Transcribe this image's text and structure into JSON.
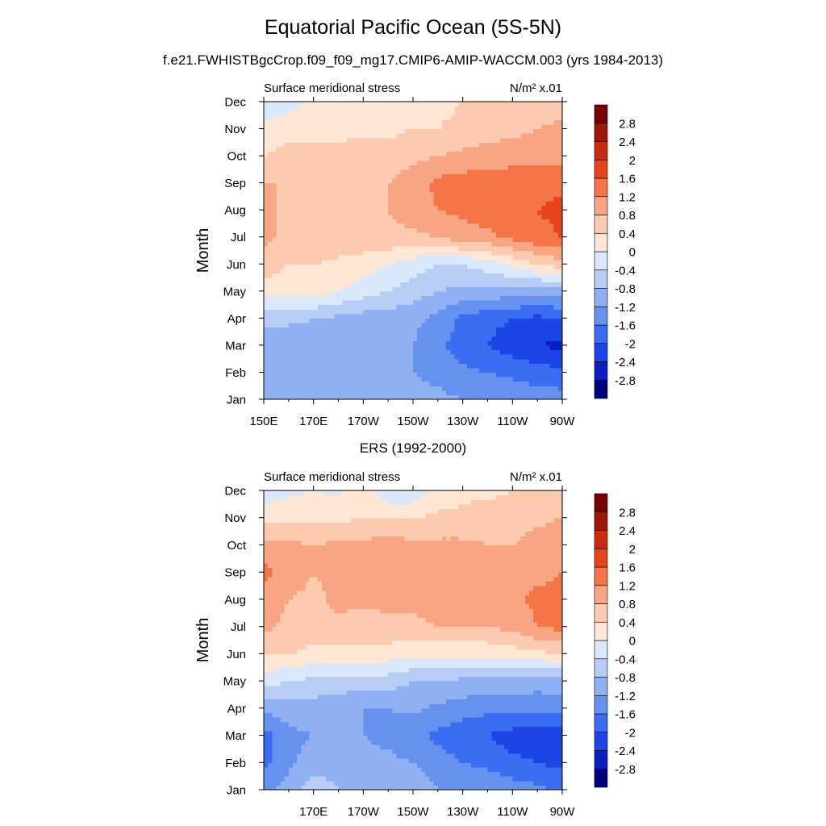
{
  "title": "Equatorial Pacific Ocean (5S-5N)",
  "subtitle": "f.e21.FWHISTBgcCrop.f09_f09_mg17.CMIP6-AMIP-WACCM.003 (yrs 1984-2013)",
  "colorbar": {
    "levels": [
      -2.8,
      -2.4,
      -2,
      -1.6,
      -1.2,
      -0.8,
      -0.4,
      0,
      0.4,
      0.8,
      1.2,
      1.6,
      2,
      2.4,
      2.8
    ],
    "labels": [
      "-2.8",
      "-2.4",
      "-2",
      "-1.6",
      "-1.2",
      "-0.8",
      "-0.4",
      "0",
      "0.4",
      "0.8",
      "1.2",
      "1.6",
      "2",
      "2.4",
      "2.8"
    ],
    "colors": [
      "#00007f",
      "#0a1fbf",
      "#1d45e6",
      "#3a6df2",
      "#6591ef",
      "#8fb0f2",
      "#b7cdf6",
      "#d9e8fb",
      "#fde6d3",
      "#fccaae",
      "#f8a583",
      "#f47648",
      "#e8441c",
      "#c92b0e",
      "#a01708",
      "#7a0000"
    ]
  },
  "chart_data": [
    {
      "type": "heatmap",
      "title": "",
      "left_label": "Surface meridional stress",
      "right_label": "N/m² x.01",
      "xlabel": "",
      "ylabel": "Month",
      "x_ticklabels": [
        "150E",
        "170E",
        "170W",
        "150W",
        "130W",
        "110W",
        "90W"
      ],
      "y_ticklabels": [
        "Jan",
        "Feb",
        "Mar",
        "Apr",
        "May",
        "Jun",
        "Jul",
        "Aug",
        "Sep",
        "Oct",
        "Nov",
        "Dec"
      ],
      "x_lon": [
        150,
        160,
        170,
        180,
        190,
        200,
        210,
        220,
        230,
        240,
        250,
        260,
        270
      ],
      "y": [
        "Jan",
        "Feb",
        "Mar",
        "Apr",
        "May",
        "Jun",
        "Jul",
        "Aug",
        "Sep",
        "Oct",
        "Nov",
        "Dec"
      ],
      "values": [
        [
          -1.0,
          -1.2,
          -1.0,
          -1.0,
          -1.0,
          -1.0,
          -1.1,
          -1.1,
          -1.2,
          -1.2,
          -1.3,
          -1.4,
          -1.4
        ],
        [
          -1.2,
          -1.2,
          -1.2,
          -1.2,
          -1.1,
          -1.1,
          -1.2,
          -1.3,
          -1.5,
          -1.6,
          -1.7,
          -1.8,
          -1.9
        ],
        [
          -1.2,
          -1.1,
          -1.0,
          -1.0,
          -1.0,
          -1.0,
          -1.2,
          -1.5,
          -1.8,
          -2.0,
          -2.2,
          -2.4,
          -2.5
        ],
        [
          -0.6,
          -0.7,
          -0.8,
          -0.9,
          -1.0,
          -1.0,
          -1.1,
          -1.3,
          -1.7,
          -1.9,
          -2.0,
          -2.1,
          -2.0
        ],
        [
          0.2,
          0.2,
          0.2,
          0.0,
          -0.2,
          -0.4,
          -0.6,
          -0.8,
          -0.9,
          -0.9,
          -1.0,
          -1.0,
          -1.0
        ],
        [
          0.6,
          0.4,
          0.4,
          0.3,
          0.2,
          0.0,
          -0.2,
          -0.4,
          -0.4,
          -0.2,
          0.1,
          0.4,
          0.6
        ],
        [
          0.9,
          0.7,
          0.7,
          0.7,
          0.7,
          0.7,
          0.7,
          0.8,
          1.0,
          1.1,
          1.3,
          1.5,
          1.6
        ],
        [
          0.9,
          0.7,
          0.7,
          0.7,
          0.7,
          0.8,
          1.0,
          1.2,
          1.3,
          1.4,
          1.5,
          1.6,
          1.7
        ],
        [
          0.8,
          0.8,
          0.8,
          0.8,
          0.7,
          0.8,
          1.0,
          1.3,
          1.4,
          1.4,
          1.5,
          1.5,
          1.5
        ],
        [
          0.4,
          0.5,
          0.5,
          0.5,
          0.6,
          0.6,
          0.7,
          0.8,
          0.9,
          1.0,
          1.0,
          1.0,
          1.0
        ],
        [
          0.2,
          0.3,
          0.3,
          0.3,
          0.3,
          0.3,
          0.4,
          0.4,
          0.5,
          0.6,
          0.7,
          0.8,
          0.9
        ],
        [
          -0.4,
          -0.2,
          0.2,
          0.2,
          0.2,
          0.2,
          0.3,
          0.3,
          0.4,
          0.4,
          0.5,
          0.5,
          0.6
        ]
      ]
    },
    {
      "type": "heatmap",
      "title": "ERS (1992-2000)",
      "left_label": "Surface meridional stress",
      "right_label": "N/m² x.01",
      "xlabel": "",
      "ylabel": "Month",
      "x_ticklabels": [
        "170E",
        "170W",
        "150W",
        "130W",
        "110W",
        "90W"
      ],
      "y_ticklabels": [
        "Jan",
        "Feb",
        "Mar",
        "Apr",
        "May",
        "Jun",
        "Jul",
        "Aug",
        "Sep",
        "Oct",
        "Nov",
        "Dec"
      ],
      "x_lon": [
        150,
        160,
        170,
        180,
        190,
        200,
        210,
        220,
        230,
        240,
        250,
        260,
        270
      ],
      "y": [
        "Jan",
        "Feb",
        "Mar",
        "Apr",
        "May",
        "Jun",
        "Jul",
        "Aug",
        "Sep",
        "Oct",
        "Nov",
        "Dec"
      ],
      "values": [
        [
          -1.4,
          -1.0,
          -0.5,
          -0.8,
          -0.9,
          -1.0,
          -1.0,
          -1.2,
          -1.3,
          -1.3,
          -1.4,
          -1.5,
          -1.7
        ],
        [
          -1.7,
          -1.3,
          -1.0,
          -1.0,
          -1.1,
          -1.1,
          -1.2,
          -1.4,
          -1.6,
          -1.7,
          -1.9,
          -2.0,
          -2.1
        ],
        [
          -1.8,
          -1.3,
          -1.2,
          -1.1,
          -1.2,
          -1.3,
          -1.5,
          -1.7,
          -1.9,
          -2.0,
          -2.2,
          -2.2,
          -2.2
        ],
        [
          -1.1,
          -1.0,
          -1.0,
          -1.0,
          -1.2,
          -1.2,
          -1.1,
          -1.3,
          -1.4,
          -1.5,
          -1.4,
          -1.5,
          -1.4
        ],
        [
          -0.2,
          -0.4,
          -0.5,
          -0.6,
          -0.6,
          -0.6,
          -0.8,
          -0.8,
          -0.9,
          -0.9,
          -1.0,
          -1.0,
          -1.0
        ],
        [
          0.4,
          0.4,
          0.3,
          0.3,
          0.3,
          0.2,
          0.1,
          0.1,
          0.1,
          0.1,
          0.2,
          0.3,
          0.4
        ],
        [
          0.9,
          0.7,
          0.6,
          0.7,
          0.6,
          0.7,
          0.7,
          0.8,
          0.8,
          0.8,
          0.9,
          1.2,
          1.3
        ],
        [
          1.0,
          0.8,
          0.7,
          0.9,
          0.9,
          0.9,
          0.9,
          1.0,
          1.0,
          1.0,
          1.1,
          1.3,
          1.3
        ],
        [
          1.3,
          1.0,
          0.8,
          0.9,
          0.9,
          1.0,
          1.0,
          1.0,
          1.0,
          1.0,
          1.0,
          1.1,
          1.2
        ],
        [
          1.0,
          0.9,
          0.8,
          0.9,
          0.9,
          1.0,
          0.9,
          0.9,
          0.9,
          0.8,
          0.8,
          1.0,
          1.1
        ],
        [
          0.2,
          0.3,
          0.3,
          0.3,
          0.4,
          0.4,
          0.4,
          0.5,
          0.5,
          0.6,
          0.6,
          0.7,
          0.8
        ],
        [
          -0.2,
          -0.1,
          0.0,
          -0.1,
          0.2,
          -0.3,
          -0.3,
          0.1,
          0.3,
          0.3,
          0.4,
          0.4,
          0.5
        ]
      ]
    }
  ]
}
